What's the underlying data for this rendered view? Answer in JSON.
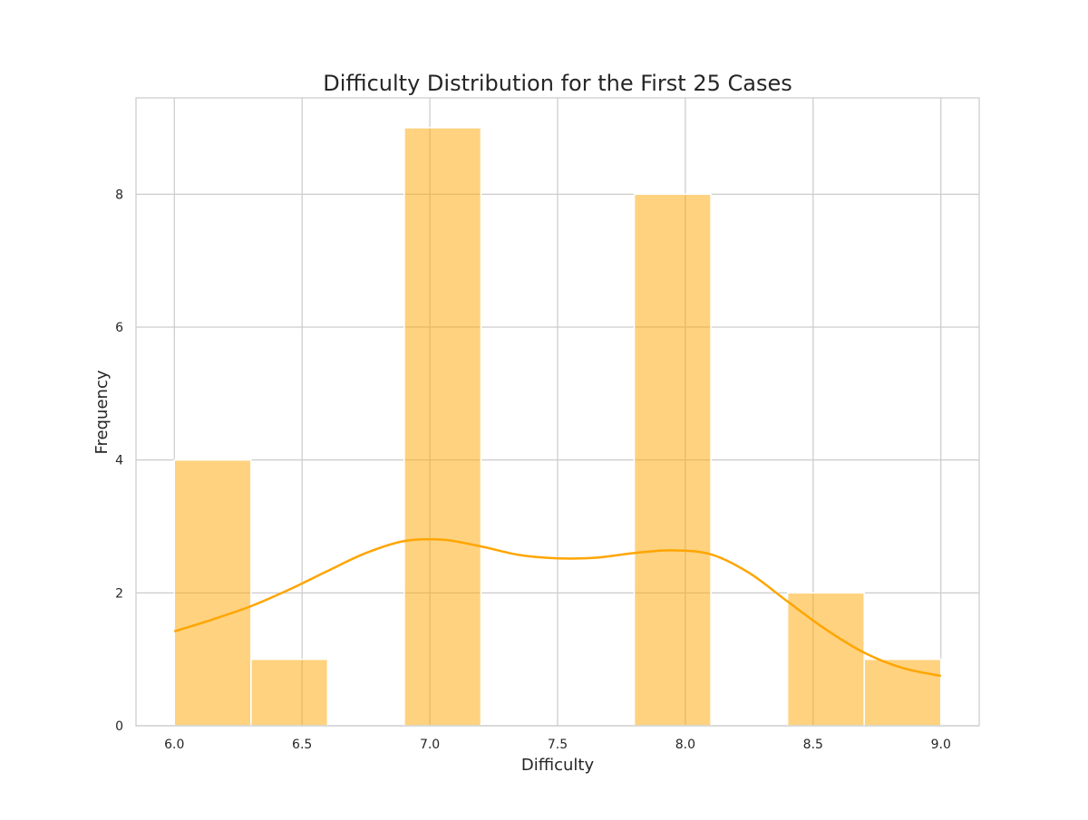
{
  "chart_data": {
    "type": "bar",
    "title": "Difficulty Distribution for the First 25 Cases",
    "xlabel": "Difficulty",
    "ylabel": "Frequency",
    "xlim": [
      5.85,
      9.15
    ],
    "ylim": [
      0,
      9.45
    ],
    "grid": true,
    "legend": "none",
    "x_ticks": [
      6.0,
      6.5,
      7.0,
      7.5,
      8.0,
      8.5,
      9.0
    ],
    "x_tick_labels": [
      "6.0",
      "6.5",
      "7.0",
      "7.5",
      "8.0",
      "8.5",
      "9.0"
    ],
    "y_ticks": [
      0,
      2,
      4,
      6,
      8
    ],
    "y_tick_labels": [
      "0",
      "2",
      "4",
      "6",
      "8"
    ],
    "bins": [
      {
        "x0": 6.0,
        "x1": 6.3,
        "count": 4
      },
      {
        "x0": 6.3,
        "x1": 6.6,
        "count": 1
      },
      {
        "x0": 6.6,
        "x1": 6.9,
        "count": 0
      },
      {
        "x0": 6.9,
        "x1": 7.2,
        "count": 9
      },
      {
        "x0": 7.2,
        "x1": 7.5,
        "count": 0
      },
      {
        "x0": 7.5,
        "x1": 7.8,
        "count": 0
      },
      {
        "x0": 7.8,
        "x1": 8.1,
        "count": 8
      },
      {
        "x0": 8.1,
        "x1": 8.4,
        "count": 0
      },
      {
        "x0": 8.4,
        "x1": 8.7,
        "count": 2
      },
      {
        "x0": 8.7,
        "x1": 9.0,
        "count": 1
      }
    ],
    "kde_curve": {
      "x": [
        6.0,
        6.15,
        6.3,
        6.45,
        6.6,
        6.75,
        6.9,
        7.05,
        7.2,
        7.35,
        7.5,
        7.65,
        7.8,
        7.95,
        8.1,
        8.25,
        8.4,
        8.55,
        8.7,
        8.85,
        9.0
      ],
      "y": [
        1.42,
        1.6,
        1.8,
        2.05,
        2.33,
        2.6,
        2.78,
        2.8,
        2.7,
        2.57,
        2.52,
        2.53,
        2.6,
        2.64,
        2.58,
        2.3,
        1.87,
        1.45,
        1.1,
        0.87,
        0.75
      ]
    },
    "colors": {
      "bar_fill": "#ffa500",
      "bar_opacity": 0.5,
      "kde_line": "#ffa500",
      "grid": "#cccccc",
      "spine": "#cccccc",
      "text": "#262626"
    }
  }
}
